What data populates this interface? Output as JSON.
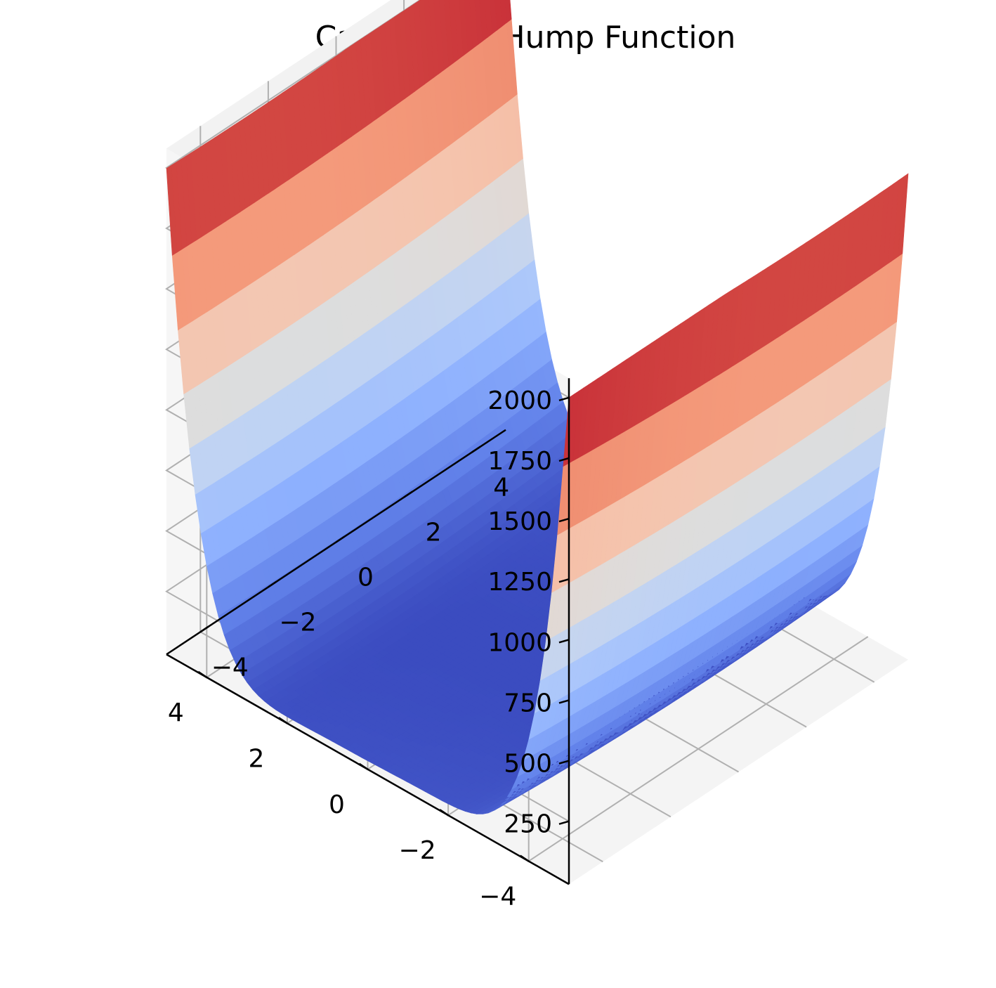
{
  "chart_data": {
    "type": "surface",
    "title": "CamelThreeHump Function",
    "xlabel": "",
    "ylabel": "",
    "zlabel": "",
    "function": "2*x^2 - 1.05*x^4 + x^6/6 + x*y + y^2",
    "x_range": [
      -5,
      5
    ],
    "y_range": [
      -5,
      5
    ],
    "z_clip": [
      0,
      2000
    ],
    "colormap": "coolwarm",
    "grid": true,
    "x_ticks": [
      -4,
      -2,
      0,
      2,
      4
    ],
    "x_tick_labels": [
      "−4",
      "−2",
      "0",
      "2",
      "4"
    ],
    "y_ticks": [
      -4,
      -2,
      0,
      2,
      4
    ],
    "y_tick_labels": [
      "−4",
      "−2",
      "0",
      "2",
      "4"
    ],
    "z_ticks": [
      250,
      500,
      750,
      1000,
      1250,
      1500,
      1750,
      2000
    ],
    "z_tick_labels": [
      "250",
      "500",
      "750",
      "1000",
      "1250",
      "1500",
      "1750",
      "2000"
    ],
    "colors": {
      "pane_left": "#f2f2f2",
      "pane_right": "#f6f6f6",
      "pane_floor": "#f4f4f4",
      "grid": "#b0b0b0",
      "axis": "#000000"
    }
  }
}
